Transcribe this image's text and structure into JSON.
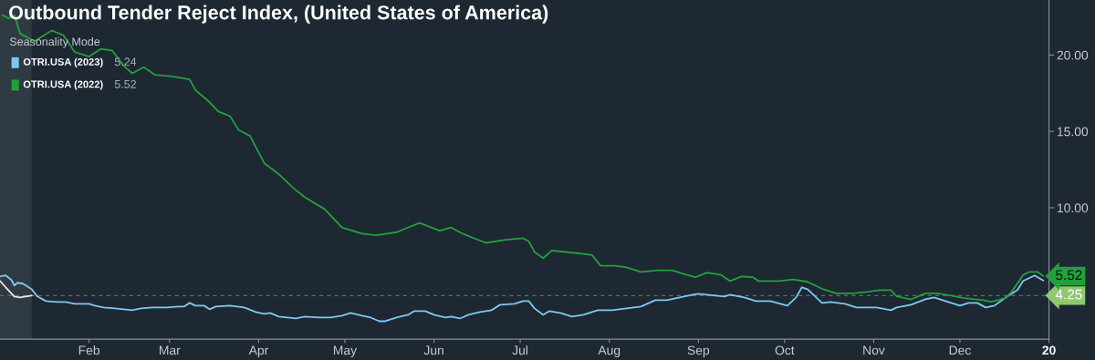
{
  "chart_data": {
    "type": "line",
    "title": "Outbound Tender Reject Index, (United States of America)",
    "legend_title": "Seasonality Mode",
    "legend": "top left",
    "grid": false,
    "marker": "none",
    "line_style": "solid",
    "xlim": [
      "2023-01-01",
      "2024-01-01"
    ],
    "ylim": [
      1.4,
      23.6
    ],
    "xticks": [
      {
        "value": "2023-02-01",
        "label": "Feb"
      },
      {
        "value": "2023-03-01",
        "label": "Mar"
      },
      {
        "value": "2023-04-01",
        "label": "Apr"
      },
      {
        "value": "2023-05-01",
        "label": "May"
      },
      {
        "value": "2023-06-01",
        "label": "Jun"
      },
      {
        "value": "2023-07-01",
        "label": "Jul"
      },
      {
        "value": "2023-08-01",
        "label": "Aug"
      },
      {
        "value": "2023-09-01",
        "label": "Sep"
      },
      {
        "value": "2023-10-01",
        "label": "Oct"
      },
      {
        "value": "2023-11-01",
        "label": "Nov"
      },
      {
        "value": "2023-12-01",
        "label": "Dec"
      },
      {
        "value": "2024-01-01",
        "label": "20"
      }
    ],
    "yticks": [
      {
        "value": 10,
        "label": "10.00"
      },
      {
        "value": 15,
        "label": "15.00"
      },
      {
        "value": 20,
        "label": "20.00"
      }
    ],
    "ref_lines": [
      {
        "axis": "y",
        "value": 4.25,
        "label": "4.25",
        "color": "#5d7060",
        "line_style": "dashed"
      }
    ],
    "bands": [
      {
        "axis": "x",
        "from": "2023-01-01",
        "to": "2023-01-12",
        "color": "#2f3a43"
      }
    ],
    "annotations": [
      "5.24",
      "5.52"
    ],
    "series": [
      {
        "name": "OTRI.USA (2023)",
        "color": "#7ec8f0",
        "x": [
          "2023-01-01",
          "2023-01-03",
          "2023-01-05",
          "2023-01-06",
          "2023-01-07",
          "2023-01-09",
          "2023-01-12",
          "2023-01-14",
          "2023-01-17",
          "2023-01-21",
          "2023-01-24",
          "2023-01-27",
          "2023-02-01",
          "2023-02-03",
          "2023-02-06",
          "2023-02-10",
          "2023-02-16",
          "2023-02-19",
          "2023-02-23",
          "2023-02-28",
          "2023-03-04",
          "2023-03-06",
          "2023-03-08",
          "2023-03-10",
          "2023-03-13",
          "2023-03-15",
          "2023-03-17",
          "2023-03-22",
          "2023-03-27",
          "2023-03-31",
          "2023-04-03",
          "2023-04-05",
          "2023-04-08",
          "2023-04-11",
          "2023-04-14",
          "2023-04-17",
          "2023-04-22",
          "2023-04-26",
          "2023-04-30",
          "2023-05-03",
          "2023-05-07",
          "2023-05-10",
          "2023-05-13",
          "2023-05-15",
          "2023-05-19",
          "2023-05-23",
          "2023-05-25",
          "2023-05-29",
          "2023-06-01",
          "2023-06-05",
          "2023-06-07",
          "2023-06-10",
          "2023-06-13",
          "2023-06-17",
          "2023-06-21",
          "2023-06-24",
          "2023-06-29",
          "2023-07-02",
          "2023-07-04",
          "2023-07-06",
          "2023-07-09",
          "2023-07-11",
          "2023-07-15",
          "2023-07-19",
          "2023-07-23",
          "2023-07-28",
          "2023-08-02",
          "2023-08-07",
          "2023-08-12",
          "2023-08-17",
          "2023-08-21",
          "2023-08-24",
          "2023-08-30",
          "2023-09-01",
          "2023-09-10",
          "2023-09-12",
          "2023-09-17",
          "2023-09-21",
          "2023-09-26",
          "2023-10-02",
          "2023-10-05",
          "2023-10-07",
          "2023-10-09",
          "2023-10-14",
          "2023-10-17",
          "2023-10-22",
          "2023-10-26",
          "2023-11-02",
          "2023-11-07",
          "2023-11-09",
          "2023-11-14",
          "2023-11-19",
          "2023-11-22",
          "2023-11-25",
          "2023-12-01",
          "2023-12-04",
          "2023-12-07",
          "2023-12-10",
          "2023-12-13",
          "2023-12-17",
          "2023-12-21",
          "2023-12-23",
          "2023-12-25",
          "2023-12-27",
          "2023-12-30"
        ],
        "values": [
          5.5,
          5.57,
          5.27,
          4.91,
          5.09,
          5.03,
          4.67,
          4.19,
          3.89,
          3.83,
          3.83,
          3.71,
          3.71,
          3.59,
          3.47,
          3.41,
          3.29,
          3.41,
          3.47,
          3.47,
          3.53,
          3.53,
          3.77,
          3.59,
          3.59,
          3.35,
          3.53,
          3.59,
          3.47,
          3.17,
          3.05,
          3.11,
          2.87,
          2.81,
          2.75,
          2.87,
          2.81,
          2.81,
          2.93,
          3.11,
          2.93,
          2.81,
          2.57,
          2.57,
          2.81,
          2.99,
          3.23,
          3.23,
          2.99,
          2.81,
          2.87,
          2.75,
          2.99,
          3.17,
          3.29,
          3.65,
          3.71,
          3.89,
          3.89,
          3.41,
          2.99,
          3.23,
          3.11,
          2.87,
          2.99,
          3.29,
          3.29,
          3.41,
          3.53,
          3.95,
          3.95,
          4.07,
          4.31,
          4.37,
          4.19,
          4.31,
          4.13,
          3.89,
          3.89,
          3.59,
          4.13,
          4.79,
          4.67,
          3.77,
          3.83,
          3.71,
          3.47,
          3.47,
          3.29,
          3.47,
          3.65,
          4.01,
          4.13,
          3.95,
          3.59,
          3.77,
          3.77,
          3.47,
          3.59,
          4.13,
          4.61,
          5.21,
          5.39,
          5.57,
          5.24
        ]
      },
      {
        "name": "OTRI.USA (2022)",
        "color": "#23a03c",
        "x": [
          "2023-01-02",
          "2023-01-04",
          "2023-01-06",
          "2023-01-08",
          "2023-01-13",
          "2023-01-19",
          "2023-01-23",
          "2023-01-27",
          "2023-02-01",
          "2023-02-05",
          "2023-02-09",
          "2023-02-13",
          "2023-02-16",
          "2023-02-20",
          "2023-02-24",
          "2023-03-02",
          "2023-03-08",
          "2023-03-10",
          "2023-03-15",
          "2023-03-18",
          "2023-03-22",
          "2023-03-25",
          "2023-03-29",
          "2023-04-03",
          "2023-04-08",
          "2023-04-13",
          "2023-04-17",
          "2023-04-24",
          "2023-04-30",
          "2023-05-07",
          "2023-05-12",
          "2023-05-19",
          "2023-05-27",
          "2023-06-03",
          "2023-06-07",
          "2023-06-11",
          "2023-06-19",
          "2023-06-26",
          "2023-07-02",
          "2023-07-04",
          "2023-07-06",
          "2023-07-09",
          "2023-07-12",
          "2023-07-22",
          "2023-07-26",
          "2023-07-29",
          "2023-08-03",
          "2023-08-07",
          "2023-08-12",
          "2023-08-18",
          "2023-08-23",
          "2023-08-28",
          "2023-08-31",
          "2023-09-04",
          "2023-09-09",
          "2023-09-12",
          "2023-09-16",
          "2023-09-20",
          "2023-09-22",
          "2023-09-29",
          "2023-10-04",
          "2023-10-09",
          "2023-10-14",
          "2023-10-19",
          "2023-10-25",
          "2023-10-30",
          "2023-11-03",
          "2023-11-07",
          "2023-11-09",
          "2023-11-14",
          "2023-11-19",
          "2023-11-23",
          "2023-11-28",
          "2023-12-02",
          "2023-12-09",
          "2023-12-12",
          "2023-12-17",
          "2023-12-19",
          "2023-12-23",
          "2023-12-25",
          "2023-12-28",
          "2023-12-30"
        ],
        "values": [
          22.6,
          22.4,
          22.6,
          21.4,
          20.9,
          21.6,
          21.3,
          20.2,
          19.9,
          20.4,
          20.3,
          19.3,
          18.8,
          19.2,
          18.7,
          18.6,
          18.4,
          17.7,
          16.9,
          16.3,
          16.0,
          15.1,
          14.7,
          12.9,
          12.2,
          11.3,
          10.7,
          9.9,
          8.7,
          8.3,
          8.2,
          8.4,
          9.0,
          8.5,
          8.7,
          8.3,
          7.7,
          7.9,
          8.0,
          7.8,
          7.1,
          6.7,
          7.2,
          7.0,
          6.9,
          6.2,
          6.2,
          6.1,
          5.8,
          5.9,
          5.9,
          5.6,
          5.45,
          5.75,
          5.6,
          5.2,
          5.5,
          5.45,
          5.2,
          5.2,
          5.3,
          5.15,
          4.7,
          4.4,
          4.4,
          4.5,
          4.6,
          4.6,
          4.2,
          4.0,
          4.4,
          4.4,
          4.25,
          4.1,
          3.95,
          3.85,
          4.1,
          4.5,
          5.6,
          5.8,
          5.8,
          5.52
        ],
        "value_labels": [
          null,
          null,
          null,
          null,
          null,
          null,
          null,
          null,
          null,
          null,
          null,
          null,
          null,
          null,
          null,
          null,
          null,
          null,
          null,
          null,
          null,
          null,
          null,
          null,
          null,
          null,
          null,
          null,
          null,
          null,
          null,
          null,
          null,
          null,
          null,
          null,
          null,
          null,
          null,
          null,
          null,
          null,
          null,
          null,
          null,
          null,
          null,
          null,
          null,
          null,
          null,
          null,
          null,
          null,
          null,
          null,
          null,
          null,
          null,
          null,
          null,
          null,
          null,
          null,
          null,
          null,
          null,
          null,
          null,
          null,
          null,
          null,
          null,
          null,
          null,
          null,
          null,
          null,
          null,
          null,
          null,
          "5.52"
        ]
      },
      {
        "color": "#e8e8e8",
        "x": [
          "2023-01-01",
          "2023-01-03",
          "2023-01-06",
          "2023-01-08",
          "2023-01-12"
        ],
        "values": [
          5.21,
          4.79,
          4.19,
          4.13,
          4.25
        ]
      }
    ]
  }
}
